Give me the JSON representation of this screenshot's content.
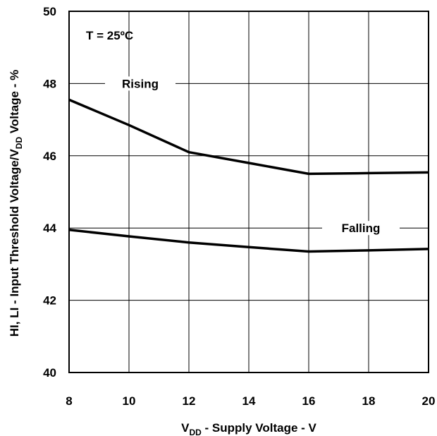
{
  "chart_data": {
    "type": "line",
    "annotation_temp": "T = 25ºC",
    "xlabel": {
      "main": "V",
      "sub": "DD",
      "rest": " - Supply Voltage - V"
    },
    "ylabel": {
      "main": "HI, LI - Input Threshold Voltage/V",
      "sub": "DD",
      "rest": " Voltage - %"
    },
    "xlim": [
      8,
      20
    ],
    "ylim": [
      40,
      50
    ],
    "x_ticks": [
      8,
      10,
      12,
      14,
      16,
      18,
      20
    ],
    "y_ticks": [
      40,
      42,
      44,
      46,
      48,
      50
    ],
    "grid": true,
    "series": [
      {
        "name": "Rising",
        "x": [
          8,
          10,
          12,
          14,
          16,
          18,
          20
        ],
        "y": [
          47.55,
          46.85,
          46.1,
          45.8,
          45.5,
          45.52,
          45.54
        ]
      },
      {
        "name": "Falling",
        "x": [
          8,
          10,
          12,
          14,
          16,
          18,
          20
        ],
        "y": [
          43.95,
          43.77,
          43.6,
          43.47,
          43.35,
          43.38,
          43.42
        ]
      }
    ]
  }
}
